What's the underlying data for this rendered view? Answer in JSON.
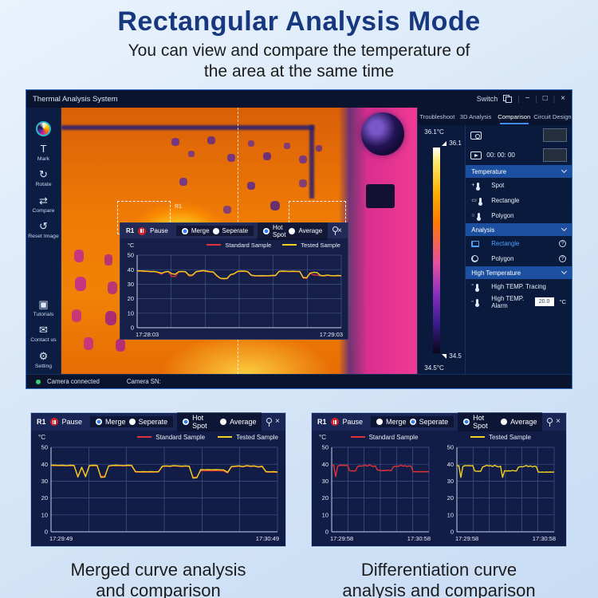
{
  "header": {
    "title": "Rectangular Analysis Mode",
    "subtitle1": "You can view and compare the temperature of",
    "subtitle2": "the area at the same time"
  },
  "window": {
    "title": "Thermal Analysis System",
    "switch_label": "Switch",
    "controls": {
      "minimize": "−",
      "maximize": "□",
      "close": "×"
    },
    "tabs": [
      {
        "label": "Troubleshoot",
        "active": false
      },
      {
        "label": "3D Analysis",
        "active": false
      },
      {
        "label": "Comparison",
        "active": true
      },
      {
        "label": "Circuit Design",
        "active": false
      }
    ],
    "toolbar": [
      {
        "name": "palette",
        "label": ""
      },
      {
        "name": "mark",
        "label": "Mark",
        "glyph": "T"
      },
      {
        "name": "rotate",
        "label": "Rotate",
        "glyph": "↻"
      },
      {
        "name": "compare",
        "label": "Compare",
        "glyph": "⇄"
      },
      {
        "name": "reset-image",
        "label": "Reset Image",
        "glyph": "↺"
      },
      {
        "name": "tutorials",
        "label": "Tutorials",
        "glyph": "▣"
      },
      {
        "name": "contact-us",
        "label": "Contact us",
        "glyph": "✉"
      },
      {
        "name": "setting",
        "label": "Setting",
        "glyph": "⚙"
      }
    ],
    "scale": {
      "max_label": "36.1°C",
      "max_marker": "36.1",
      "min_marker": "34.5",
      "min_label": "34.5°C"
    },
    "panel": {
      "record_time": "00: 00: 00",
      "sections": [
        {
          "title": "Temperature"
        },
        {
          "title": "Analysis"
        },
        {
          "title": "High Temperature"
        }
      ],
      "temperature_items": [
        {
          "label": "Spot"
        },
        {
          "label": "Rectangle"
        },
        {
          "label": "Polygon"
        }
      ],
      "analysis_items": [
        {
          "label": "Rectangle",
          "active": true
        },
        {
          "label": "Polygon",
          "active": false
        }
      ],
      "high_items": {
        "tracing": "High TEMP. Tracing",
        "alarm": "High TEMP. Alarm",
        "alarm_value": "20.0",
        "alarm_unit": "°C"
      }
    },
    "status": {
      "camera": "Camera connected",
      "sn": "Camera SN:"
    },
    "thermal": {
      "region_label": "R1"
    }
  },
  "chart_ui": {
    "region": "R1",
    "pause": "Pause",
    "radios": {
      "merge": "Merge",
      "seperate": "Seperate",
      "hotspot": "Hot Spot",
      "average": "Average"
    },
    "legend": {
      "standard": "Standard Sample",
      "tested": "Tested Sample"
    },
    "unit": "°C"
  },
  "radio_states": {
    "main": {
      "merge": true,
      "seperate": false,
      "hotspot": true,
      "average": false
    },
    "merged": {
      "merge": true,
      "seperate": false,
      "hotspot": true,
      "average": false
    },
    "separate": {
      "merge": false,
      "seperate": true,
      "hotspot": true,
      "average": false
    }
  },
  "captions": {
    "left1": "Merged curve analysis",
    "left2": "and comparison",
    "right1": "Differentiation curve",
    "right2": "analysis and comparison"
  },
  "colors": {
    "accent_blue": "#3f8cff",
    "standard_red": "#e03038",
    "tested_yellow": "#f0d020",
    "section_header_blue": "#1c4f9f",
    "status_green": "#35d073",
    "grid": "#44548c"
  },
  "chart_data": [
    {
      "type": "line",
      "target": "chart-main",
      "title": "R1 merged comparison",
      "xlabel": "",
      "ylabel": "°C",
      "ylim": [
        0,
        50
      ],
      "yticks": [
        0,
        10,
        20,
        30,
        40,
        50
      ],
      "x_range": [
        "17:28:03",
        "17:29:03"
      ],
      "x_divisions": 6,
      "grid": true,
      "legend_position": "top",
      "series": [
        {
          "name": "Standard Sample",
          "color": "#e03038",
          "values": [
            39.0,
            39.0,
            38.8,
            38.7,
            38.5,
            38.6,
            38.0,
            36.8,
            38.2,
            38.6,
            35.4,
            35.2,
            38.4,
            38.6,
            38.4,
            35.6,
            35.8,
            38.4,
            38.8,
            39.2,
            38.8,
            38.4,
            38.2,
            35.6,
            34.0,
            33.6,
            33.8,
            36.4,
            37.0,
            38.6,
            38.8,
            38.8,
            38.4,
            36.0,
            35.6,
            35.6,
            35.7,
            35.6,
            35.6,
            35.8,
            35.8,
            38.6,
            38.8,
            38.7,
            38.6,
            38.7,
            38.6,
            38.6,
            34.2,
            34.0,
            37.4,
            36.4,
            36.2,
            35.8,
            35.6,
            36.1,
            35.7,
            35.6,
            35.8,
            35.6
          ]
        },
        {
          "name": "Tested Sample",
          "color": "#f0d020",
          "values": [
            39.2,
            39.2,
            39.0,
            38.9,
            38.7,
            38.8,
            38.3,
            37.6,
            38.4,
            38.8,
            37.2,
            36.8,
            38.6,
            38.8,
            38.6,
            36.2,
            36.3,
            38.6,
            39.0,
            39.4,
            39.0,
            38.6,
            38.4,
            36.0,
            34.2,
            33.8,
            34.0,
            36.6,
            37.2,
            38.8,
            39.0,
            39.0,
            38.6,
            36.2,
            35.8,
            35.8,
            35.9,
            35.8,
            35.8,
            36.0,
            36.0,
            38.8,
            39.0,
            38.9,
            38.8,
            38.9,
            38.8,
            38.8,
            34.6,
            34.4,
            37.6,
            38.2,
            38.0,
            36.0,
            35.8,
            36.3,
            35.9,
            35.8,
            36.0,
            35.8
          ]
        }
      ]
    },
    {
      "type": "line",
      "target": "chart-merged",
      "title": "Merged curve analysis",
      "xlabel": "",
      "ylabel": "°C",
      "ylim": [
        0,
        50
      ],
      "yticks": [
        0,
        10,
        20,
        30,
        40,
        50
      ],
      "x_range": [
        "17:29:49",
        "17:30:49"
      ],
      "x_divisions": 6,
      "grid": true,
      "legend_position": "top",
      "series": [
        {
          "name": "Standard Sample",
          "color": "#e03038",
          "values": [
            39.2,
            39.2,
            39.1,
            39.2,
            39.0,
            39.2,
            39.1,
            33.0,
            38.0,
            33.2,
            39.0,
            39.2,
            39.1,
            32.8,
            33.0,
            38.8,
            39.1,
            39.2,
            39.1,
            39.0,
            39.2,
            39.1,
            35.4,
            35.3,
            35.4,
            35.3,
            35.4,
            35.3,
            35.4,
            38.6,
            38.8,
            38.6,
            39.0,
            38.8,
            38.6,
            38.8,
            38.6,
            32.2,
            32.4,
            36.2,
            36.1,
            36.2,
            36.1,
            36.2,
            36.1,
            36.0,
            34.8,
            38.4,
            38.6,
            38.8,
            38.4,
            39.0,
            38.6,
            38.8,
            38.2,
            38.6,
            35.4,
            35.3,
            35.4,
            35.2
          ]
        },
        {
          "name": "Tested Sample",
          "color": "#f0d020",
          "values": [
            39.4,
            39.4,
            39.3,
            39.4,
            39.2,
            39.4,
            39.3,
            32.4,
            38.2,
            32.6,
            39.2,
            39.4,
            39.3,
            32.2,
            32.4,
            39.0,
            39.3,
            39.4,
            39.3,
            39.2,
            39.4,
            39.3,
            35.6,
            35.5,
            35.6,
            35.5,
            35.6,
            35.5,
            35.6,
            38.8,
            39.0,
            38.8,
            39.2,
            39.0,
            38.8,
            39.0,
            38.8,
            31.8,
            32.0,
            36.8,
            36.7,
            36.8,
            36.7,
            36.8,
            36.7,
            36.6,
            35.2,
            38.6,
            38.8,
            39.0,
            38.6,
            39.2,
            38.8,
            39.0,
            38.4,
            38.8,
            35.6,
            35.5,
            35.6,
            35.4
          ]
        }
      ]
    },
    {
      "type": "line",
      "target": "chart-sep-standard",
      "title": "Standard Sample curve",
      "xlabel": "",
      "ylabel": "°C",
      "ylim": [
        0,
        50
      ],
      "yticks": [
        0,
        10,
        20,
        30,
        40,
        50
      ],
      "x_range": [
        "17:29:58",
        "17:30:58"
      ],
      "x_divisions": 6,
      "grid": true,
      "legend_position": "top",
      "series": [
        {
          "name": "Standard Sample",
          "color": "#e03038",
          "values": [
            39.4,
            39.3,
            32.6,
            38.8,
            39.4,
            39.3,
            39.4,
            39.2,
            39.4,
            36.2,
            36.0,
            36.1,
            36.0,
            38.6,
            39.0,
            38.8,
            39.2,
            39.4,
            38.8,
            39.6,
            39.0,
            38.6,
            39.0,
            36.6,
            36.4,
            36.2,
            36.3,
            36.2,
            36.5,
            36.3,
            36.2,
            38.4,
            38.8,
            38.6,
            39.0,
            39.4,
            38.8,
            39.2,
            38.6,
            39.0,
            38.8,
            35.6,
            35.5,
            35.6,
            35.5,
            35.6,
            35.5,
            35.6,
            35.5,
            35.6
          ]
        }
      ]
    },
    {
      "type": "line",
      "target": "chart-sep-tested",
      "title": "Tested Sample curve",
      "xlabel": "",
      "ylabel": "°C",
      "ylim": [
        0,
        50
      ],
      "yticks": [
        0,
        10,
        20,
        30,
        40,
        50
      ],
      "x_range": [
        "17:29:58",
        "17:30:58"
      ],
      "x_divisions": 6,
      "grid": true,
      "legend_position": "top",
      "series": [
        {
          "name": "Tested Sample",
          "color": "#f0d020",
          "values": [
            39.2,
            39.1,
            32.2,
            38.6,
            39.2,
            39.1,
            39.2,
            39.0,
            39.2,
            36.0,
            35.8,
            35.9,
            35.8,
            38.4,
            38.8,
            39.4,
            39.0,
            39.2,
            38.6,
            39.4,
            38.8,
            38.4,
            38.8,
            32.2,
            36.2,
            36.0,
            36.1,
            36.0,
            36.3,
            36.1,
            36.0,
            38.2,
            38.6,
            38.4,
            38.8,
            39.2,
            38.6,
            39.0,
            38.4,
            38.8,
            38.6,
            35.4,
            35.3,
            35.4,
            35.3,
            35.4,
            35.3,
            35.4,
            35.3,
            35.4
          ]
        }
      ]
    }
  ]
}
